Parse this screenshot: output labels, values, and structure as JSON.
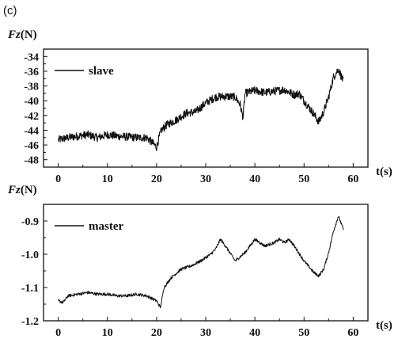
{
  "panel_label": "(c)",
  "chart_data": [
    {
      "type": "line",
      "ylabel_var": "Fz",
      "ylabel_unit": "(N)",
      "xlabel": "t(s)",
      "xlim": [
        -3,
        63
      ],
      "ylim": [
        -49,
        -33
      ],
      "xticks": [
        0,
        10,
        20,
        30,
        40,
        50,
        60
      ],
      "yticks": [
        -48,
        -46,
        -44,
        -42,
        -40,
        -38,
        -36,
        -34
      ],
      "legend": "top-left",
      "series": [
        {
          "name": "slave",
          "noise": 0.55,
          "x": [
            0,
            2,
            4,
            6,
            8,
            10,
            12,
            14,
            16,
            18,
            19,
            20,
            20.5,
            21,
            22,
            24,
            26,
            28,
            30,
            32,
            34,
            36,
            37,
            37.6,
            38,
            40,
            42,
            44,
            46,
            48,
            49,
            50,
            52,
            53,
            54,
            55,
            56,
            57,
            58
          ],
          "y": [
            -45.3,
            -45.0,
            -44.8,
            -44.6,
            -45.0,
            -44.6,
            -44.8,
            -44.9,
            -45.0,
            -45.0,
            -45.6,
            -46.3,
            -45.0,
            -44.0,
            -43.3,
            -42.6,
            -41.7,
            -41.5,
            -40.3,
            -39.5,
            -39.4,
            -39.5,
            -40.5,
            -42.3,
            -39.0,
            -38.6,
            -38.9,
            -38.7,
            -38.5,
            -39.2,
            -39.0,
            -40.0,
            -41.8,
            -42.9,
            -41.5,
            -39.5,
            -36.8,
            -35.7,
            -37.4
          ]
        }
      ]
    },
    {
      "type": "line",
      "ylabel_var": "Fz",
      "ylabel_unit": "(N)",
      "xlabel": "t(s)",
      "xlim": [
        -3,
        63
      ],
      "ylim": [
        -1.2,
        -0.85
      ],
      "xticks": [
        0,
        10,
        20,
        30,
        40,
        50,
        60
      ],
      "yticks": [
        -1.2,
        -1.1,
        -1.0,
        -0.9
      ],
      "ytick_labels": [
        "-1.2",
        "-1.1",
        "-1.0",
        "-0.9"
      ],
      "legend": "top-left",
      "series": [
        {
          "name": "master",
          "noise": 0.0045,
          "x": [
            0,
            1,
            2,
            4,
            6,
            8,
            10,
            12,
            14,
            16,
            18,
            20,
            20.8,
            21.5,
            23,
            25,
            27,
            29,
            31,
            32,
            33,
            34,
            36,
            38,
            40,
            42,
            44,
            45,
            46,
            47,
            48,
            50,
            52,
            53,
            54,
            55,
            56,
            57,
            58
          ],
          "y": [
            -1.14,
            -1.145,
            -1.125,
            -1.12,
            -1.115,
            -1.12,
            -1.12,
            -1.125,
            -1.125,
            -1.12,
            -1.125,
            -1.14,
            -1.16,
            -1.1,
            -1.07,
            -1.045,
            -1.035,
            -1.02,
            -1.0,
            -0.985,
            -0.955,
            -0.975,
            -1.02,
            -0.995,
            -0.955,
            -0.975,
            -0.965,
            -0.955,
            -0.965,
            -0.955,
            -0.975,
            -1.02,
            -1.055,
            -1.065,
            -1.045,
            -0.995,
            -0.93,
            -0.885,
            -0.925
          ]
        }
      ]
    }
  ]
}
